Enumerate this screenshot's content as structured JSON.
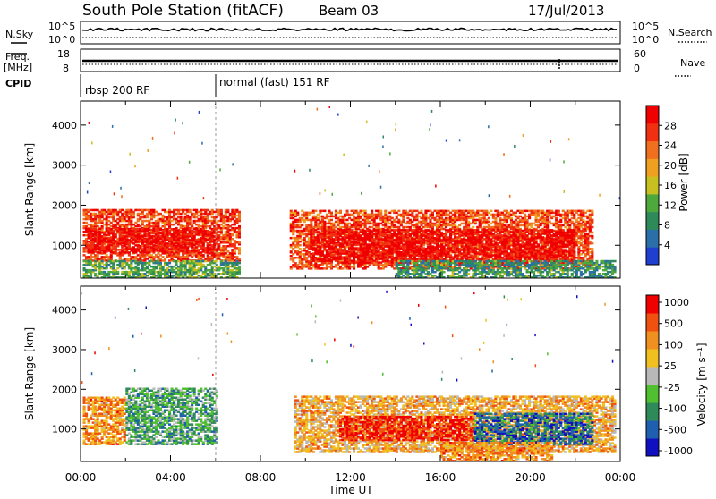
{
  "header": {
    "title": "South Pole Station (fitACF)",
    "beam": "Beam 03",
    "date": "17/Jul/2013"
  },
  "strips": {
    "nsky_label": "N.Sky",
    "nsearch_label": "N.Search",
    "freq_label_1": "Freq.",
    "freq_label_2": "[MHz]",
    "nave_label": "Nave",
    "cpid_label": "CPID",
    "noise_left_ticks": [
      "10^5",
      "10^0"
    ],
    "noise_right_ticks": [
      "10^5",
      "10^0"
    ],
    "freq_left_ticks": [
      "18",
      "8"
    ],
    "freq_right_ticks": [
      "60",
      "0"
    ]
  },
  "cpid": {
    "modes": [
      {
        "label": "rbsp 200 RF",
        "start_hour": 0
      },
      {
        "label": "normal (fast) 151 RF",
        "start_hour": 6
      }
    ]
  },
  "colors": {
    "power_scale": [
      "#1f3fd0",
      "#2b6fa8",
      "#2f8a5a",
      "#4fa83c",
      "#c8c020",
      "#f0a020",
      "#f07020",
      "#f03010",
      "#f00000"
    ],
    "velocity_scale": [
      "#1010c0",
      "#1f5fb0",
      "#2f8a5a",
      "#50c030",
      "#b8b8b8",
      "#f0c020",
      "#f09020",
      "#f05010",
      "#f00000"
    ]
  },
  "chart_data": [
    {
      "type": "heatmap",
      "panel": "power",
      "ylabel": "Slant Range [km]",
      "xlabel": "",
      "x_ticks": [
        "00:00",
        "04:00",
        "08:00",
        "12:00",
        "16:00",
        "20:00",
        "00:00"
      ],
      "xlim": [
        0,
        24
      ],
      "ylim": [
        180,
        4600
      ],
      "y_ticks": [
        1000,
        2000,
        3000,
        4000
      ],
      "colorbar_label": "Power [dB]",
      "colorbar_ticks": [
        "4",
        "8",
        "12",
        "16",
        "20",
        "24",
        "28"
      ],
      "regions": [
        {
          "t0": 0.1,
          "t1": 7.0,
          "r0": 600,
          "r1": 1900,
          "level": 0.82
        },
        {
          "t0": 0.3,
          "t1": 6.0,
          "r0": 800,
          "r1": 1400,
          "level": 0.95
        },
        {
          "t0": 9.3,
          "t1": 22.8,
          "r0": 400,
          "r1": 1850,
          "level": 0.8
        },
        {
          "t0": 10.2,
          "t1": 22.0,
          "r0": 550,
          "r1": 1400,
          "level": 0.96
        },
        {
          "t0": 0.1,
          "t1": 7.0,
          "r0": 180,
          "r1": 600,
          "level": 0.35
        },
        {
          "t0": 14.0,
          "t1": 23.8,
          "r0": 180,
          "r1": 600,
          "level": 0.3
        }
      ]
    },
    {
      "type": "heatmap",
      "panel": "velocity",
      "ylabel": "Slant Range [km]",
      "xlabel": "Time UT",
      "x_ticks": [
        "00:00",
        "04:00",
        "08:00",
        "12:00",
        "16:00",
        "20:00",
        "00:00"
      ],
      "xlim": [
        0,
        24
      ],
      "ylim": [
        180,
        4600
      ],
      "y_ticks": [
        1000,
        2000,
        3000,
        4000
      ],
      "colorbar_label": "Velocity [m s⁻¹]",
      "colorbar_ticks": [
        "1000",
        "500",
        "100",
        "25",
        "-25",
        "-100",
        "-500",
        "-1000"
      ],
      "regions": [
        {
          "t0": 0.1,
          "t1": 2.0,
          "r0": 600,
          "r1": 1800,
          "level": 0.72
        },
        {
          "t0": 2.0,
          "t1": 6.0,
          "r0": 600,
          "r1": 2000,
          "level": 0.35
        },
        {
          "t0": 9.5,
          "t1": 23.8,
          "r0": 400,
          "r1": 1800,
          "level": 0.65
        },
        {
          "t0": 11.5,
          "t1": 17.5,
          "r0": 700,
          "r1": 1300,
          "level": 0.92
        },
        {
          "t0": 17.5,
          "t1": 22.8,
          "r0": 600,
          "r1": 1400,
          "level": 0.2
        },
        {
          "t0": 16.0,
          "t1": 21.0,
          "r0": 180,
          "r1": 650,
          "level": 0.72
        }
      ]
    }
  ],
  "footer": {
    "time_label": "Time UT"
  }
}
